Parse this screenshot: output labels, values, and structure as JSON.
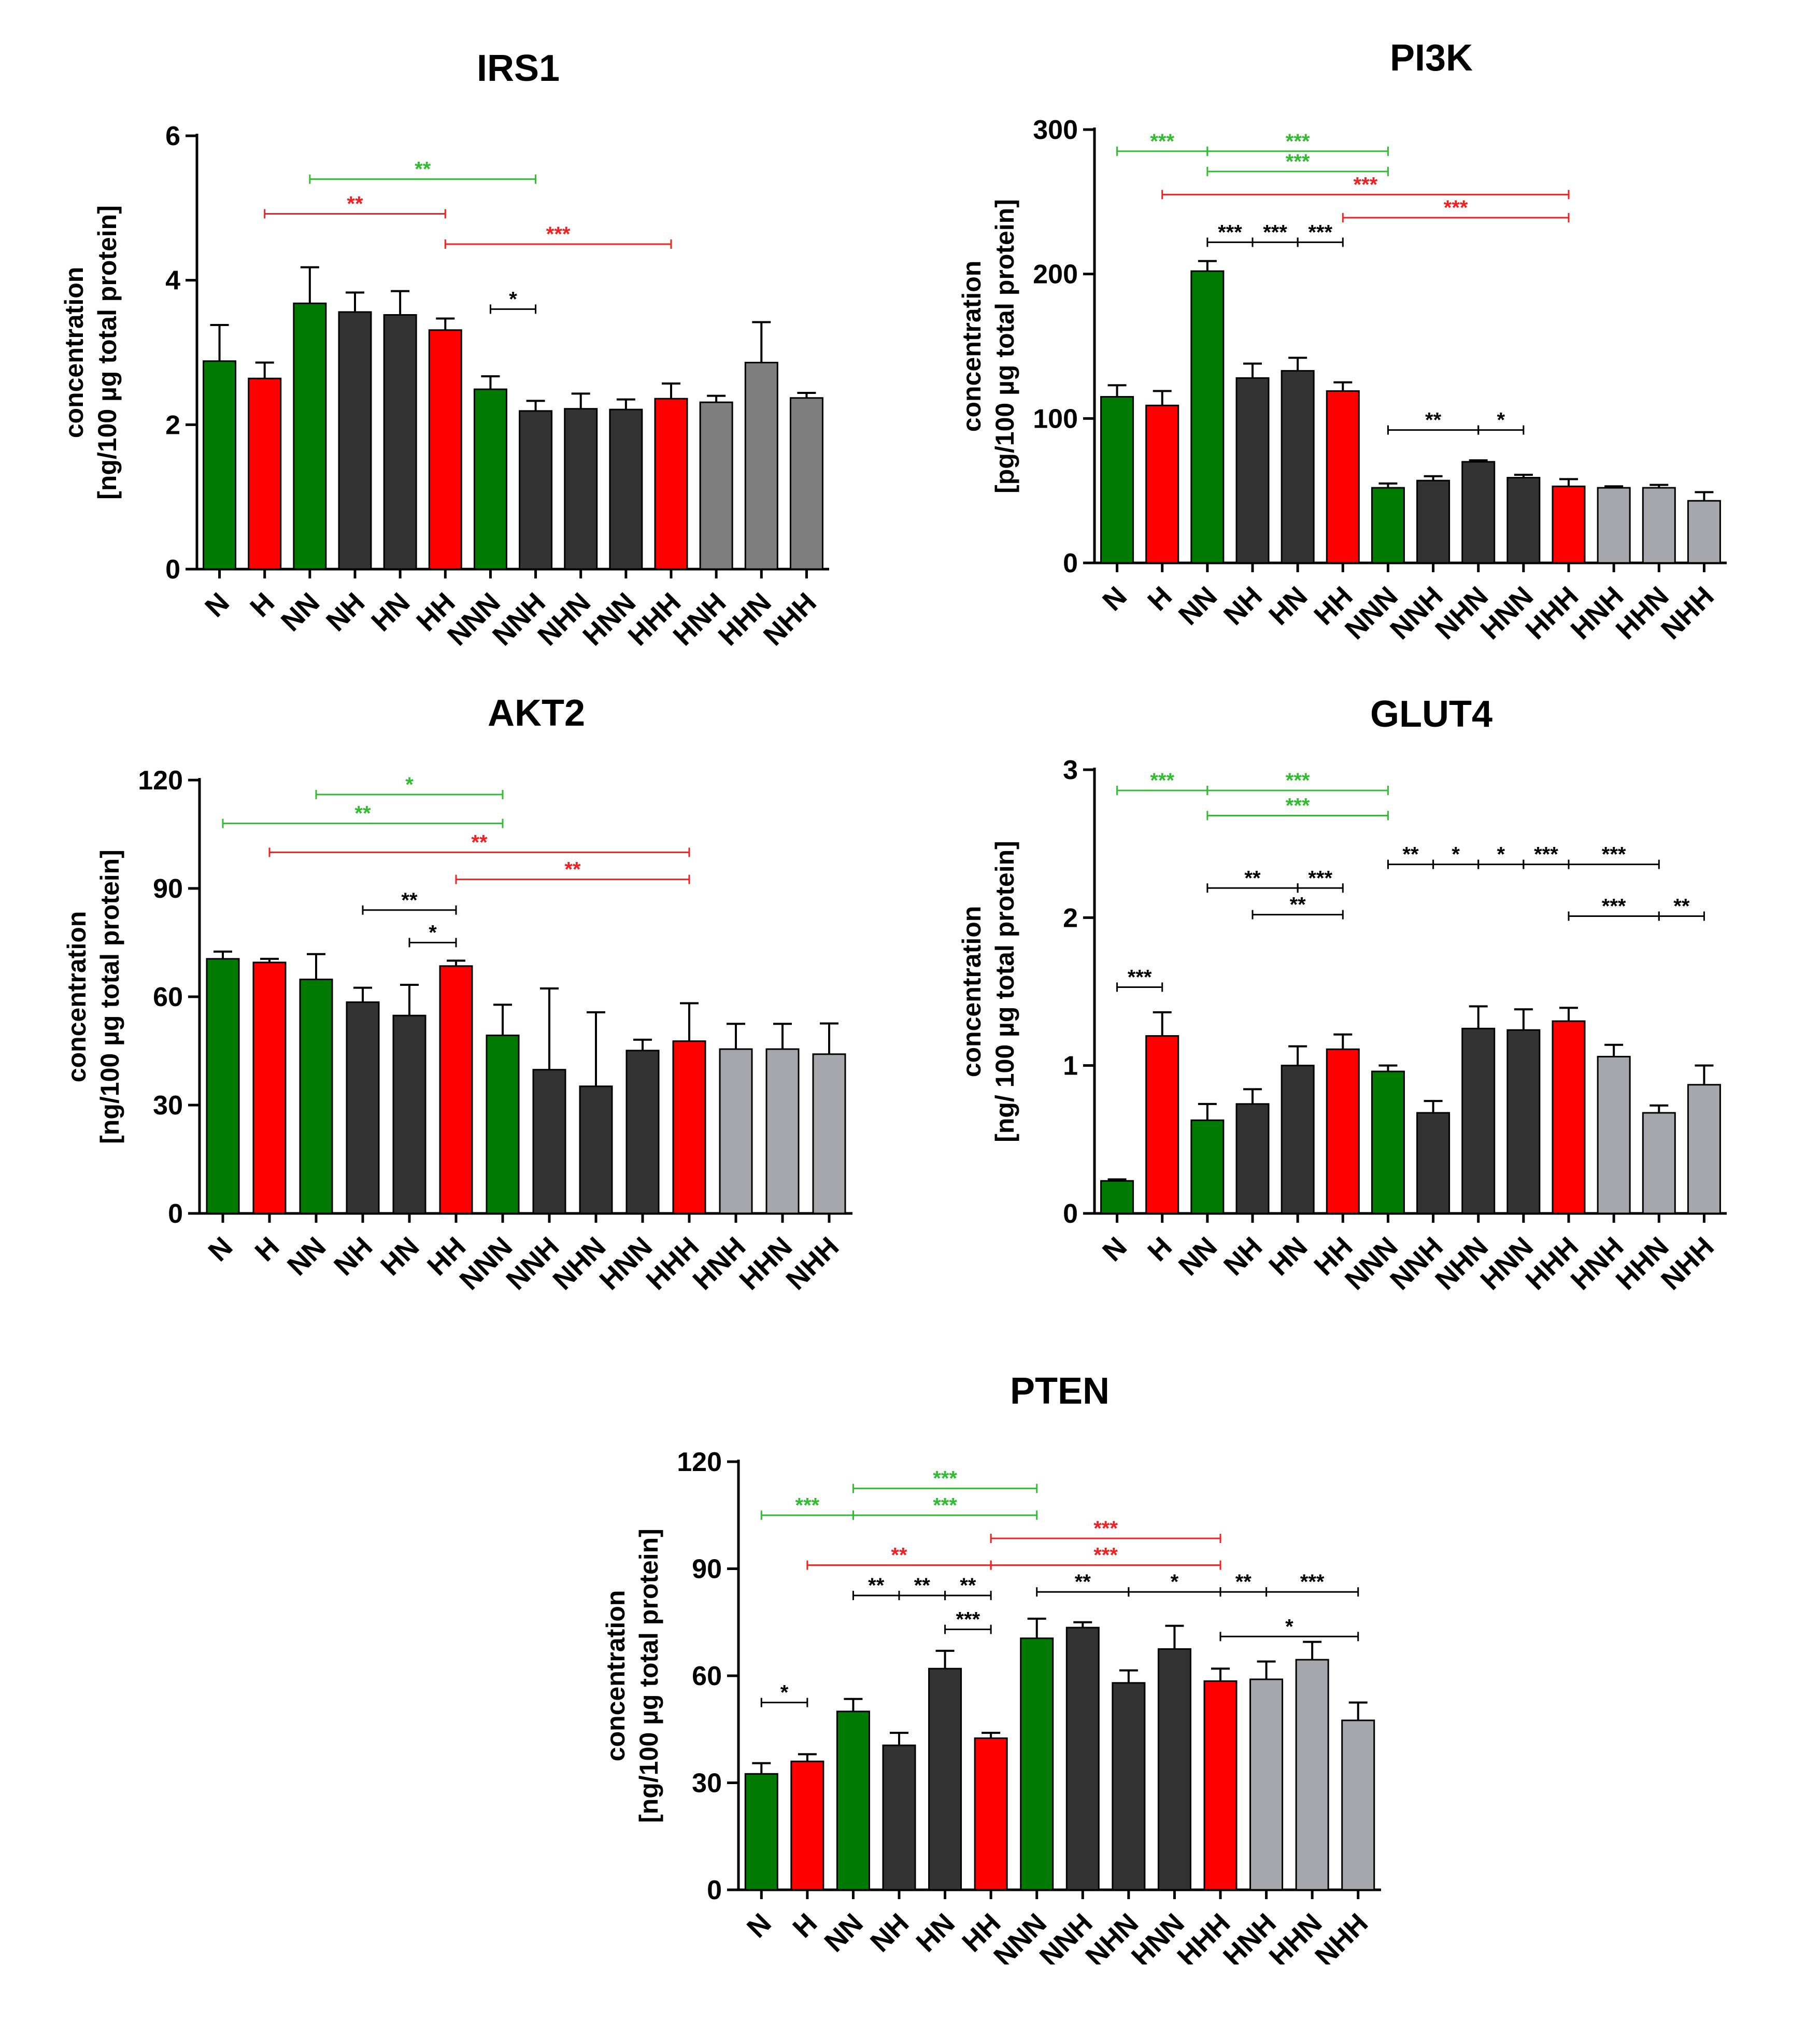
{
  "colors": {
    "green": "#007a00",
    "red": "#ff0000",
    "dark": "#333333",
    "gray": "#7f7f7f",
    "light_gray": "#a6a6ad",
    "sig_green": "#33bb33",
    "sig_red": "#ee2222",
    "sig_black": "#000000"
  },
  "chart_data": [
    {
      "type": "bar",
      "title": "IRS1",
      "ylabel_line1": "concentration",
      "ylabel_line2": "[ng/100 µg total protein]",
      "ylim": [
        0,
        6
      ],
      "yticks": [
        0,
        2,
        4,
        6
      ],
      "categories": [
        "N",
        "H",
        "NN",
        "NH",
        "HN",
        "HH",
        "NNN",
        "NNH",
        "NHN",
        "HNN",
        "HHH",
        "HNH",
        "HHN",
        "NHH"
      ],
      "values": [
        2.88,
        2.64,
        3.68,
        3.56,
        3.52,
        3.31,
        2.49,
        2.19,
        2.22,
        2.21,
        2.36,
        2.31,
        2.86,
        2.37
      ],
      "errors": [
        0.5,
        0.22,
        0.5,
        0.27,
        0.33,
        0.16,
        0.18,
        0.14,
        0.21,
        0.14,
        0.21,
        0.09,
        0.56,
        0.07
      ],
      "bar_colors": [
        "green",
        "red",
        "green",
        "dark",
        "dark",
        "red",
        "green",
        "dark",
        "dark",
        "dark",
        "red",
        "gray",
        "gray",
        "gray"
      ],
      "significance": [
        {
          "from": 2,
          "to": 7,
          "y": 5.4,
          "label": "**",
          "color": "sig_green"
        },
        {
          "from": 1,
          "to": 5,
          "y": 4.92,
          "label": "**",
          "color": "sig_red"
        },
        {
          "from": 5,
          "to": 10,
          "y": 4.5,
          "label": "***",
          "color": "sig_red"
        },
        {
          "from": 6,
          "to": 7,
          "y": 3.6,
          "label": "*",
          "color": "sig_black"
        }
      ]
    },
    {
      "type": "bar",
      "title": "PI3K",
      "ylabel_line1": "concentration",
      "ylabel_line2": "[pg/100 µg total protein]",
      "ylim": [
        0,
        300
      ],
      "yticks": [
        0,
        100,
        200,
        300
      ],
      "categories": [
        "N",
        "H",
        "NN",
        "NH",
        "HN",
        "HH",
        "NNN",
        "NNH",
        "NHN",
        "HNN",
        "HHH",
        "HNH",
        "HHN",
        "NHH"
      ],
      "values": [
        115,
        109,
        202,
        128,
        133,
        119,
        52,
        57,
        70,
        59,
        53,
        52,
        52,
        43
      ],
      "errors": [
        8,
        10,
        7,
        10,
        9,
        6,
        3,
        3,
        1,
        2,
        5,
        1,
        2,
        6
      ],
      "bar_colors": [
        "green",
        "red",
        "green",
        "dark",
        "dark",
        "red",
        "green",
        "dark",
        "dark",
        "dark",
        "red",
        "light_gray",
        "light_gray",
        "light_gray"
      ],
      "significance": [
        {
          "from": 0,
          "to": 2,
          "y": 285,
          "label": "***",
          "color": "sig_green"
        },
        {
          "from": 2,
          "to": 6,
          "y": 285,
          "label": "***",
          "color": "sig_green"
        },
        {
          "from": 2,
          "to": 6,
          "y": 271,
          "label": "***",
          "color": "sig_green"
        },
        {
          "from": 1,
          "to": 10,
          "y": 255,
          "label": "***",
          "color": "sig_red"
        },
        {
          "from": 5,
          "to": 10,
          "y": 239,
          "label": "***",
          "color": "sig_red"
        },
        {
          "from": 2,
          "to": 3,
          "y": 222,
          "label": "***",
          "color": "sig_black"
        },
        {
          "from": 3,
          "to": 4,
          "y": 222,
          "label": "***",
          "color": "sig_black"
        },
        {
          "from": 4,
          "to": 5,
          "y": 222,
          "label": "***",
          "color": "sig_black"
        },
        {
          "from": 6,
          "to": 8,
          "y": 92,
          "label": "**",
          "color": "sig_black"
        },
        {
          "from": 8,
          "to": 9,
          "y": 92,
          "label": "*",
          "color": "sig_black"
        }
      ]
    },
    {
      "type": "bar",
      "title": "AKT2",
      "ylabel_line1": "concentration",
      "ylabel_line2": "[ng/100 µg total protein]",
      "ylim": [
        0,
        120
      ],
      "yticks": [
        0,
        30,
        60,
        90,
        120
      ],
      "categories": [
        "N",
        "H",
        "NN",
        "NH",
        "HN",
        "HH",
        "NNN",
        "NNH",
        "NHN",
        "HNN",
        "HHH",
        "HNH",
        "HHN",
        "NHH"
      ],
      "values": [
        70.5,
        69.5,
        64.8,
        58.5,
        54.8,
        68.5,
        49.3,
        39.8,
        35.2,
        45.1,
        47.7,
        45.5,
        45.5,
        44.1
      ],
      "errors": [
        2,
        1,
        7,
        4,
        8.5,
        1.5,
        8.5,
        22.5,
        20.5,
        3,
        10.5,
        7,
        7,
        8.5
      ],
      "bar_colors": [
        "green",
        "red",
        "green",
        "dark",
        "dark",
        "red",
        "green",
        "dark",
        "dark",
        "dark",
        "red",
        "light_gray",
        "light_gray",
        "light_gray"
      ],
      "significance": [
        {
          "from": 2,
          "to": 6,
          "y": 116,
          "label": "*",
          "color": "sig_green"
        },
        {
          "from": 0,
          "to": 6,
          "y": 108,
          "label": "**",
          "color": "sig_green"
        },
        {
          "from": 1,
          "to": 10,
          "y": 100,
          "label": "**",
          "color": "sig_red"
        },
        {
          "from": 5,
          "to": 10,
          "y": 92.5,
          "label": "**",
          "color": "sig_red"
        },
        {
          "from": 3,
          "to": 5,
          "y": 84,
          "label": "**",
          "color": "sig_black"
        },
        {
          "from": 4,
          "to": 5,
          "y": 75,
          "label": "*",
          "color": "sig_black"
        }
      ]
    },
    {
      "type": "bar",
      "title": "GLUT4",
      "ylabel_line1": "concentration",
      "ylabel_line2": "[ng/ 100 µg total protein]",
      "ylim": [
        0,
        3
      ],
      "yticks": [
        0,
        1,
        2,
        3
      ],
      "categories": [
        "N",
        "H",
        "NN",
        "NH",
        "HN",
        "HH",
        "NNN",
        "NNH",
        "NHN",
        "HNN",
        "HHH",
        "HNH",
        "HHN",
        "NHH"
      ],
      "values": [
        0.22,
        1.2,
        0.63,
        0.74,
        1.0,
        1.11,
        0.96,
        0.68,
        1.25,
        1.24,
        1.3,
        1.06,
        0.68,
        0.87
      ],
      "errors": [
        0.01,
        0.16,
        0.11,
        0.1,
        0.13,
        0.1,
        0.04,
        0.08,
        0.15,
        0.14,
        0.09,
        0.08,
        0.05,
        0.13
      ],
      "bar_colors": [
        "green",
        "red",
        "green",
        "dark",
        "dark",
        "red",
        "green",
        "dark",
        "dark",
        "dark",
        "red",
        "light_gray",
        "light_gray",
        "light_gray"
      ],
      "significance": [
        {
          "from": 0,
          "to": 2,
          "y": 2.86,
          "label": "***",
          "color": "sig_green"
        },
        {
          "from": 2,
          "to": 6,
          "y": 2.86,
          "label": "***",
          "color": "sig_green"
        },
        {
          "from": 2,
          "to": 6,
          "y": 2.69,
          "label": "***",
          "color": "sig_green"
        },
        {
          "from": 6,
          "to": 7,
          "y": 2.36,
          "label": "**",
          "color": "sig_black"
        },
        {
          "from": 7,
          "to": 8,
          "y": 2.36,
          "label": "*",
          "color": "sig_black"
        },
        {
          "from": 8,
          "to": 9,
          "y": 2.36,
          "label": "*",
          "color": "sig_black"
        },
        {
          "from": 9,
          "to": 10,
          "y": 2.36,
          "label": "***",
          "color": "sig_black"
        },
        {
          "from": 10,
          "to": 12,
          "y": 2.36,
          "label": "***",
          "color": "sig_black"
        },
        {
          "from": 2,
          "to": 4,
          "y": 2.2,
          "label": "**",
          "color": "sig_black"
        },
        {
          "from": 4,
          "to": 5,
          "y": 2.2,
          "label": "***",
          "color": "sig_black"
        },
        {
          "from": 3,
          "to": 5,
          "y": 2.02,
          "label": "**",
          "color": "sig_black"
        },
        {
          "from": 10,
          "to": 12,
          "y": 2.01,
          "label": "***",
          "color": "sig_black"
        },
        {
          "from": 12,
          "to": 13,
          "y": 2.01,
          "label": "**",
          "color": "sig_black"
        },
        {
          "from": 0,
          "to": 1,
          "y": 1.53,
          "label": "***",
          "color": "sig_black"
        }
      ]
    },
    {
      "type": "bar",
      "title": "PTEN",
      "ylabel_line1": "concentration",
      "ylabel_line2": "[ng/100 µg total protein]",
      "ylim": [
        0,
        120
      ],
      "yticks": [
        0,
        30,
        60,
        90,
        120
      ],
      "categories": [
        "N",
        "H",
        "NN",
        "NH",
        "HN",
        "HH",
        "NNN",
        "NNH",
        "NHN",
        "HNN",
        "HHH",
        "HNH",
        "HHN",
        "NHH"
      ],
      "values": [
        32.5,
        36,
        50,
        40.5,
        62,
        42.5,
        70.5,
        73.5,
        58,
        67.5,
        58.5,
        59,
        64.5,
        47.5
      ],
      "errors": [
        3,
        2,
        3.5,
        3.5,
        5,
        1.5,
        5.5,
        1.5,
        3.5,
        6.5,
        3.5,
        5,
        5,
        5
      ],
      "bar_colors": [
        "green",
        "red",
        "green",
        "dark",
        "dark",
        "red",
        "green",
        "dark",
        "dark",
        "dark",
        "red",
        "light_gray",
        "light_gray",
        "light_gray"
      ],
      "significance": [
        {
          "from": 2,
          "to": 6,
          "y": 112.5,
          "label": "***",
          "color": "sig_green"
        },
        {
          "from": 0,
          "to": 2,
          "y": 105,
          "label": "***",
          "color": "sig_green"
        },
        {
          "from": 2,
          "to": 6,
          "y": 105,
          "label": "***",
          "color": "sig_green"
        },
        {
          "from": 5,
          "to": 10,
          "y": 98.5,
          "label": "***",
          "color": "sig_red"
        },
        {
          "from": 1,
          "to": 5,
          "y": 91,
          "label": "**",
          "color": "sig_red"
        },
        {
          "from": 5,
          "to": 10,
          "y": 91,
          "label": "***",
          "color": "sig_red"
        },
        {
          "from": 2,
          "to": 3,
          "y": 82.5,
          "label": "**",
          "color": "sig_black"
        },
        {
          "from": 3,
          "to": 4,
          "y": 82.5,
          "label": "**",
          "color": "sig_black"
        },
        {
          "from": 4,
          "to": 5,
          "y": 82.5,
          "label": "**",
          "color": "sig_black"
        },
        {
          "from": 6,
          "to": 8,
          "y": 83.5,
          "label": "**",
          "color": "sig_black"
        },
        {
          "from": 8,
          "to": 10,
          "y": 83.5,
          "label": "*",
          "color": "sig_black"
        },
        {
          "from": 10,
          "to": 11,
          "y": 83.5,
          "label": "**",
          "color": "sig_black"
        },
        {
          "from": 11,
          "to": 13,
          "y": 83.5,
          "label": "***",
          "color": "sig_black"
        },
        {
          "from": 4,
          "to": 5,
          "y": 73,
          "label": "***",
          "color": "sig_black"
        },
        {
          "from": 10,
          "to": 13,
          "y": 71,
          "label": "*",
          "color": "sig_black"
        },
        {
          "from": 0,
          "to": 1,
          "y": 52.5,
          "label": "*",
          "color": "sig_black"
        }
      ]
    }
  ]
}
